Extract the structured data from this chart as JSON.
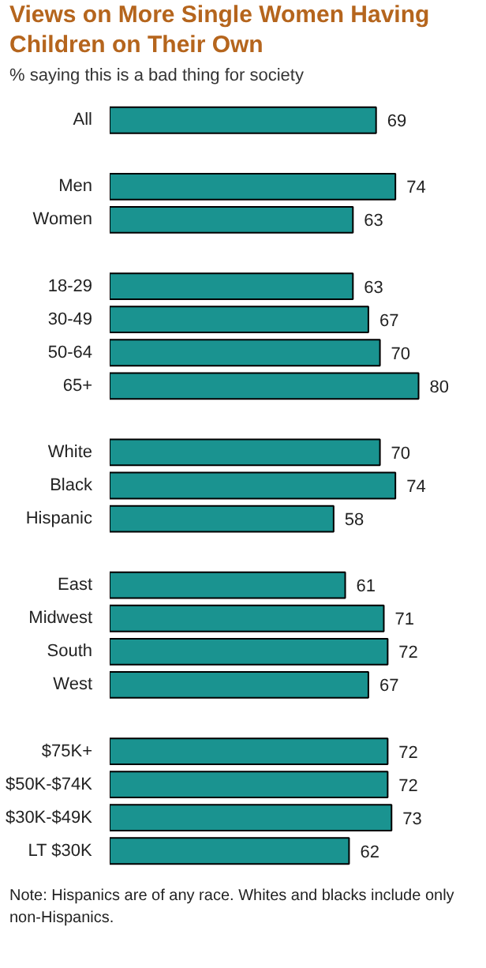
{
  "chart_data": {
    "type": "bar",
    "orientation": "horizontal",
    "title": "Views on More Single Women Having Children on Their Own",
    "subtitle": "% saying this is a bad thing for society",
    "categories": [
      "All",
      null,
      "Men",
      "Women",
      null,
      "18-29",
      "30-49",
      "50-64",
      "65+",
      null,
      "White",
      "Black",
      "Hispanic",
      null,
      "East",
      "Midwest",
      "South",
      "West",
      null,
      "$75K+",
      "$50K-$74K",
      "$30K-$49K",
      "LT $30K"
    ],
    "values": [
      69,
      null,
      74,
      63,
      null,
      63,
      67,
      70,
      80,
      null,
      70,
      74,
      58,
      null,
      61,
      71,
      72,
      67,
      null,
      72,
      72,
      73,
      62
    ],
    "color": "#1a9390",
    "data_labels": true,
    "grid": false,
    "annotations": [
      "Note: Hispanics are of any race. Whites and blacks include only non-Hispanics."
    ]
  }
}
